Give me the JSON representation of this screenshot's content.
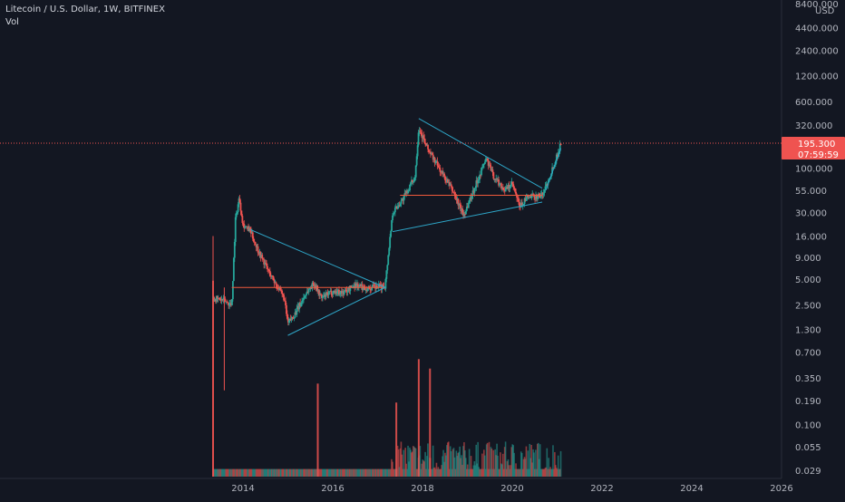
{
  "header": {
    "title": "Litecoin / U.S. Dollar, 1W, BITFINEX",
    "volume_label": "Vol"
  },
  "price_axis": {
    "currency": "USD",
    "current_price": "195.300",
    "countdown": "07:59:59"
  },
  "colors": {
    "background": "#131722",
    "up": "#26a69a",
    "down": "#ef5350",
    "trendline": "#2ea6c8",
    "horizontal_level": "#f05a3c",
    "price_tag": "#ef5350"
  },
  "chart_data": {
    "type": "candlestick",
    "title": "Litecoin / U.S. Dollar, 1W, BITFINEX",
    "y_scale": "log",
    "y_ticks": [
      "8400.000",
      "4400.000",
      "2400.000",
      "1200.000",
      "600.000",
      "320.000",
      "100.000",
      "55.000",
      "30.000",
      "16.000",
      "9.000",
      "5.000",
      "2.500",
      "1.300",
      "0.700",
      "0.350",
      "0.190",
      "0.100",
      "0.055",
      "0.029"
    ],
    "x_ticks": [
      "2014",
      "2016",
      "2018",
      "2020",
      "2022",
      "2024",
      "2026"
    ],
    "last_price": 195.3,
    "price_path": [
      [
        "2013-05",
        3.0
      ],
      [
        "2013-08",
        2.8
      ],
      [
        "2013-10",
        2.5
      ],
      [
        "2013-11",
        25.0
      ],
      [
        "2013-12",
        45.0
      ],
      [
        "2014-01",
        22.0
      ],
      [
        "2014-03",
        18.0
      ],
      [
        "2014-05",
        11.0
      ],
      [
        "2014-08",
        6.0
      ],
      [
        "2014-12",
        3.0
      ],
      [
        "2015-01",
        1.5
      ],
      [
        "2015-03",
        2.0
      ],
      [
        "2015-06",
        3.5
      ],
      [
        "2015-08",
        4.5
      ],
      [
        "2015-10",
        3.0
      ],
      [
        "2016-01",
        3.6
      ],
      [
        "2016-04",
        3.5
      ],
      [
        "2016-07",
        4.3
      ],
      [
        "2016-10",
        3.9
      ],
      [
        "2017-01",
        4.0
      ],
      [
        "2017-03",
        4.2
      ],
      [
        "2017-05",
        30.0
      ],
      [
        "2017-08",
        45.0
      ],
      [
        "2017-11",
        80.0
      ],
      [
        "2017-12",
        300.0
      ],
      [
        "2018-02",
        180.0
      ],
      [
        "2018-06",
        90.0
      ],
      [
        "2018-09",
        55.0
      ],
      [
        "2018-12",
        28.0
      ],
      [
        "2019-03",
        60.0
      ],
      [
        "2019-06",
        130.0
      ],
      [
        "2019-08",
        80.0
      ],
      [
        "2019-11",
        55.0
      ],
      [
        "2020-01",
        65.0
      ],
      [
        "2020-03",
        35.0
      ],
      [
        "2020-05",
        45.0
      ],
      [
        "2020-09",
        48.0
      ],
      [
        "2020-11",
        80.0
      ],
      [
        "2021-01",
        140.0
      ],
      [
        "2021-02",
        195.3
      ]
    ],
    "volume_spikes": [
      [
        "2013-05",
        4.8
      ],
      [
        "2015-09",
        0.3
      ],
      [
        "2017-06",
        0.18
      ],
      [
        "2017-12",
        0.58
      ],
      [
        "2018-03",
        0.45
      ]
    ],
    "annotations": {
      "trendlines": [
        {
          "from": [
            "2014-03",
            19.0
          ],
          "to": [
            "2017-03",
            4.0
          ]
        },
        {
          "from": [
            "2015-01",
            1.1
          ],
          "to": [
            "2017-03",
            4.0
          ]
        },
        {
          "from": [
            "2017-12",
            380.0
          ],
          "to": [
            "2020-09",
            58.0
          ]
        },
        {
          "from": [
            "2017-05",
            18.0
          ],
          "to": [
            "2020-09",
            40.0
          ]
        },
        {
          "from": [
            "2020-10",
            55.0
          ],
          "to": [
            "2021-02",
            170.0
          ]
        }
      ],
      "horizontal_levels": [
        {
          "from": "2013-10",
          "to": "2017-03",
          "price": 4.0
        },
        {
          "from": "2017-07",
          "to": "2020-09",
          "price": 48.0
        }
      ]
    }
  }
}
